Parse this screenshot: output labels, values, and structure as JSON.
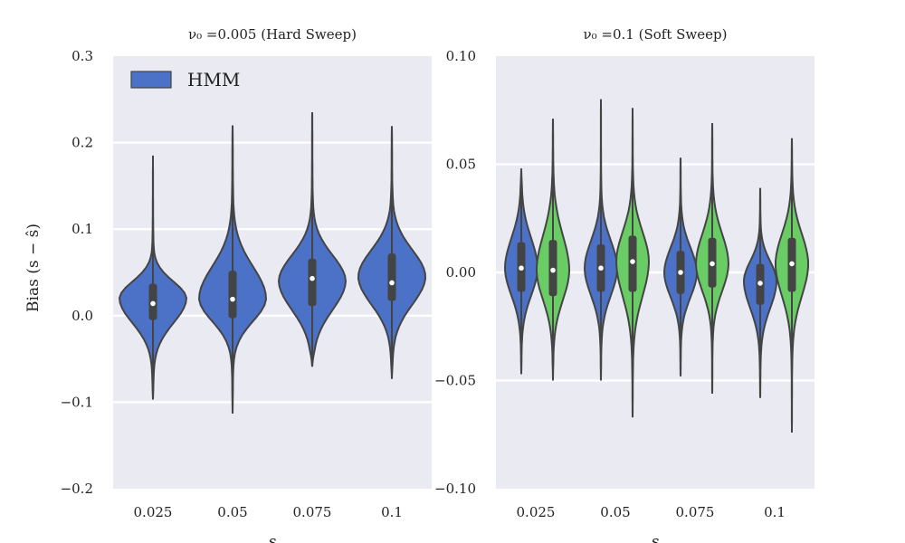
{
  "chart_data": [
    {
      "type": "violin",
      "title": "ν₀ =0.005 (Hard Sweep)",
      "xlabel": "s",
      "ylabel": "Bias (s − ŝ)",
      "categories": [
        "0.025",
        "0.05",
        "0.075",
        "0.1"
      ],
      "ylim": [
        -0.2,
        0.3
      ],
      "yticks": [
        -0.2,
        -0.1,
        0.0,
        0.1,
        0.2,
        0.3
      ],
      "ytick_labels": [
        "−0.2",
        "−0.1",
        "0.0",
        "0.1",
        "0.2",
        "0.3"
      ],
      "grid": true,
      "legend": {
        "placement": "top-left",
        "entries": [
          "HMM"
        ]
      },
      "series": [
        {
          "name": "HMM",
          "color": "#4C72C7",
          "values": [
            {
              "category": "0.025",
              "min": -0.097,
              "q1": -0.005,
              "median": 0.014,
              "q3": 0.037,
              "max": 0.185,
              "mode": 0.02
            },
            {
              "category": "0.05",
              "min": -0.113,
              "q1": -0.003,
              "median": 0.019,
              "q3": 0.052,
              "max": 0.22,
              "mode": 0.02
            },
            {
              "category": "0.075",
              "min": -0.058,
              "q1": 0.011,
              "median": 0.043,
              "q3": 0.066,
              "max": 0.235,
              "mode": 0.04
            },
            {
              "category": "0.1",
              "min": -0.073,
              "q1": 0.017,
              "median": 0.038,
              "q3": 0.072,
              "max": 0.219,
              "mode": 0.045
            }
          ]
        }
      ]
    },
    {
      "type": "violin",
      "title": "ν₀ =0.1 (Soft Sweep)",
      "xlabel": "s",
      "ylabel": "",
      "categories": [
        "0.025",
        "0.05",
        "0.075",
        "0.1"
      ],
      "ylim": [
        -0.1,
        0.1
      ],
      "yticks": [
        -0.1,
        -0.05,
        0.0,
        0.05,
        0.1
      ],
      "ytick_labels": [
        "−0.10",
        "−0.05",
        "0.00",
        "0.05",
        "0.10"
      ],
      "grid": true,
      "series": [
        {
          "name": "",
          "color": "#4C72C7",
          "values": [
            {
              "category": "0.025",
              "min": -0.047,
              "q1": -0.009,
              "median": 0.002,
              "q3": 0.014,
              "max": 0.048,
              "mode": 0.002
            },
            {
              "category": "0.05",
              "min": -0.05,
              "q1": -0.009,
              "median": 0.002,
              "q3": 0.013,
              "max": 0.08,
              "mode": 0.002
            },
            {
              "category": "0.075",
              "min": -0.048,
              "q1": -0.01,
              "median": 0.0,
              "q3": 0.01,
              "max": 0.053,
              "mode": 0.0
            },
            {
              "category": "0.1",
              "min": -0.058,
              "q1": -0.015,
              "median": -0.005,
              "q3": 0.004,
              "max": 0.039,
              "mode": -0.004
            }
          ]
        },
        {
          "name": "",
          "color": "#6ACC65",
          "values": [
            {
              "category": "0.025",
              "min": -0.05,
              "q1": -0.011,
              "median": 0.001,
              "q3": 0.015,
              "max": 0.071,
              "mode": 0.001
            },
            {
              "category": "0.05",
              "min": -0.067,
              "q1": -0.009,
              "median": 0.005,
              "q3": 0.017,
              "max": 0.076,
              "mode": 0.005
            },
            {
              "category": "0.075",
              "min": -0.056,
              "q1": -0.007,
              "median": 0.004,
              "q3": 0.016,
              "max": 0.069,
              "mode": 0.004
            },
            {
              "category": "0.1",
              "min": -0.074,
              "q1": -0.009,
              "median": 0.004,
              "q3": 0.016,
              "max": 0.062,
              "mode": 0.004
            }
          ]
        }
      ]
    }
  ]
}
